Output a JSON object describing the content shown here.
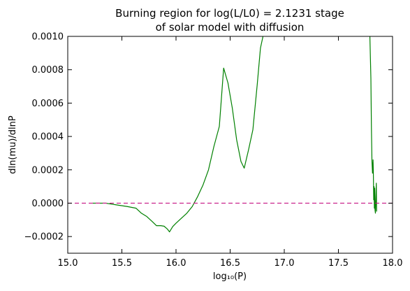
{
  "chart_data": {
    "type": "line",
    "title_line1": "Burning region for log(L/L0) = 2.1231 stage",
    "title_line2": "of solar model with diffusion",
    "xlabel": "log₁₀(P)",
    "ylabel": "dln(mu)/dlnP",
    "xlim": [
      15.0,
      18.0
    ],
    "ylim": [
      -0.0003,
      0.001
    ],
    "x_ticks": [
      "15.0",
      "15.5",
      "16.0",
      "16.5",
      "17.0",
      "17.5",
      "18.0"
    ],
    "y_ticks": [
      "−0.0002",
      "0.0000",
      "0.0002",
      "0.0004",
      "0.0006",
      "0.0008",
      "0.0010"
    ],
    "grid": false,
    "series": [
      {
        "color": "#008000",
        "style": "solid",
        "segments": [
          {
            "x": [
              15.23,
              15.35,
              15.45,
              15.55,
              15.63,
              15.68,
              15.73,
              15.78,
              15.82,
              15.86,
              15.89,
              15.92,
              15.94,
              15.97,
              16.0,
              16.05,
              16.1,
              16.15,
              16.2,
              16.25,
              16.3,
              16.35,
              16.4,
              16.44,
              16.48,
              16.52,
              16.56,
              16.6,
              16.63,
              16.67,
              16.71,
              16.75,
              16.78,
              16.81
            ],
            "y": [
              0.0,
              0.0,
              -1e-05,
              -2e-05,
              -3e-05,
              -6e-05,
              -8e-05,
              -0.00011,
              -0.000135,
              -0.000135,
              -0.000138,
              -0.000155,
              -0.000172,
              -0.00014,
              -0.00012,
              -9e-05,
              -6e-05,
              -2e-05,
              4e-05,
              0.00011,
              0.0002,
              0.00034,
              0.00046,
              0.00081,
              0.00072,
              0.00057,
              0.00038,
              0.00025,
              0.00021,
              0.00032,
              0.00044,
              0.00071,
              0.00093,
              0.00102
            ]
          },
          {
            "x": [
              17.79,
              17.8,
              17.805,
              17.81,
              17.815,
              17.82,
              17.823,
              17.826,
              17.829,
              17.832,
              17.835,
              17.838,
              17.842,
              17.846,
              17.85,
              17.853
            ],
            "y": [
              0.00102,
              0.00075,
              0.00045,
              0.00025,
              0.00018,
              0.00026,
              0.00017,
              2e-05,
              0.0001,
              -3e-05,
              9e-05,
              -4e-05,
              -6e-05,
              3e-05,
              0.00012,
              -5e-05
            ]
          }
        ]
      },
      {
        "color": "#c71585",
        "style": "dashed",
        "segments": [
          {
            "x": [
              15.0,
              18.0
            ],
            "y": [
              0.0,
              0.0
            ]
          }
        ]
      }
    ]
  }
}
